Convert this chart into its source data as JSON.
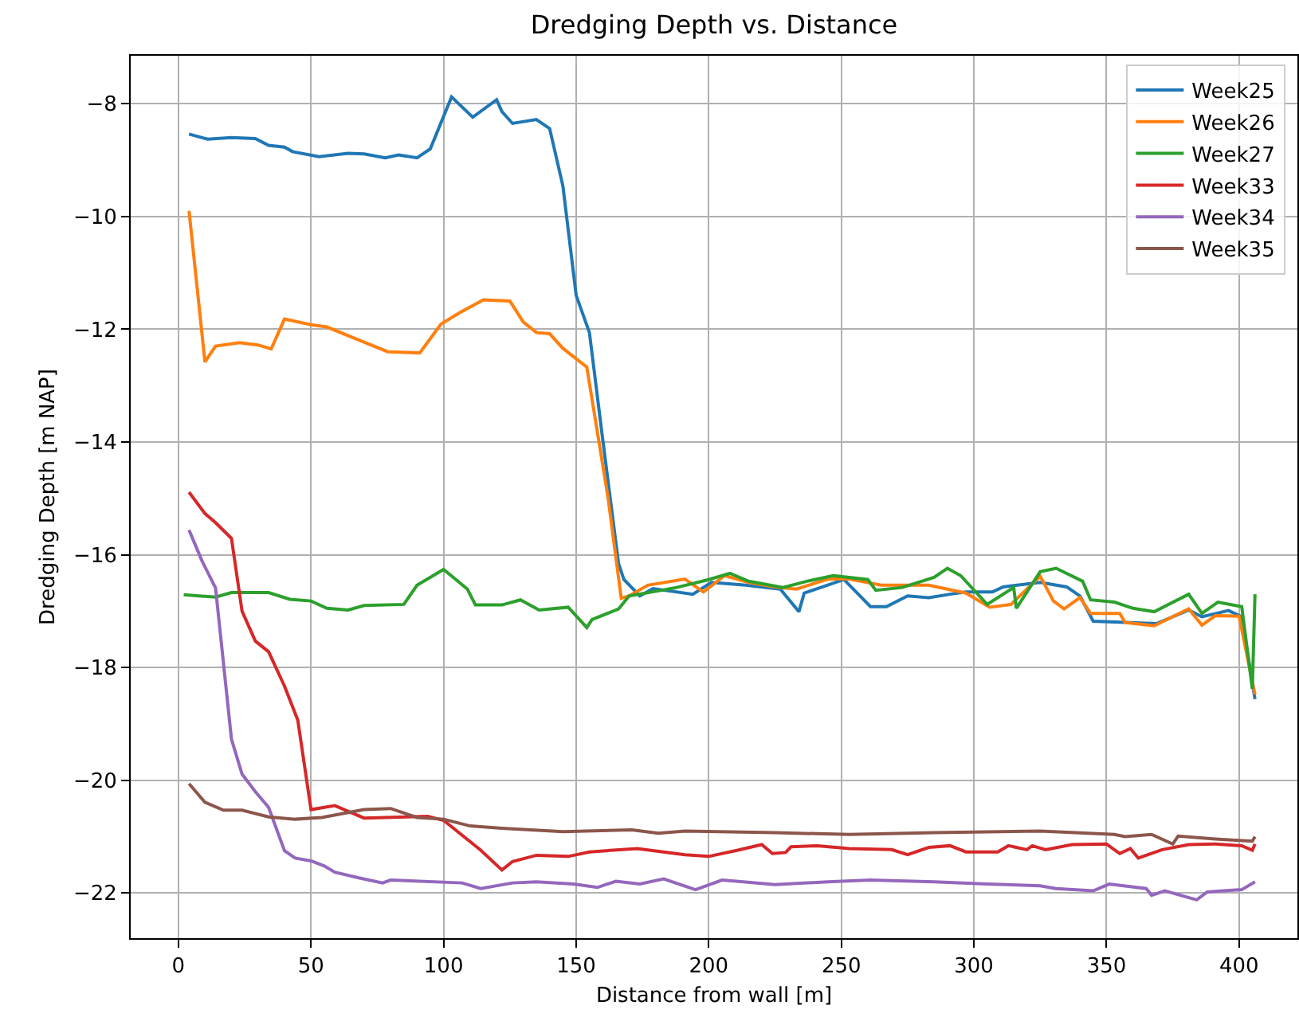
{
  "chart_data": {
    "type": "line",
    "title": "Dredging Depth vs. Distance",
    "xlabel": "Distance from wall [m]",
    "ylabel": "Dredging Depth [m NAP]",
    "xlim": [
      -18,
      422
    ],
    "ylim": [
      -22.8,
      -7.15
    ],
    "xticks": [
      0,
      50,
      100,
      150,
      200,
      250,
      300,
      350,
      400
    ],
    "yticks": [
      -22,
      -20,
      -18,
      -16,
      -14,
      -12,
      -10,
      -8
    ],
    "grid": true,
    "legend": "top right",
    "marker": "none",
    "line_style": "solid",
    "series": [
      {
        "name": "Week25",
        "color": "#1f77b4",
        "x": [
          4,
          11,
          20,
          29,
          34,
          40,
          43,
          53,
          64,
          70,
          78,
          83,
          90,
          95,
          103,
          111,
          120,
          122,
          126,
          135,
          140,
          145,
          150,
          155,
          160,
          166,
          168,
          174,
          179,
          194,
          201,
          214,
          227,
          234,
          236,
          251,
          261,
          267,
          275,
          283,
          291,
          297,
          307,
          311,
          325,
          335,
          340,
          345,
          357,
          369,
          381,
          386,
          396,
          401,
          406
        ],
        "values": [
          -8.54,
          -8.63,
          -8.6,
          -8.62,
          -8.74,
          -8.77,
          -8.85,
          -8.94,
          -8.88,
          -8.89,
          -8.96,
          -8.91,
          -8.96,
          -8.8,
          -7.88,
          -8.24,
          -7.93,
          -8.14,
          -8.35,
          -8.28,
          -8.44,
          -9.46,
          -11.4,
          -12.06,
          -13.95,
          -16.16,
          -16.44,
          -16.73,
          -16.6,
          -16.7,
          -16.49,
          -16.54,
          -16.61,
          -17.01,
          -16.68,
          -16.44,
          -16.92,
          -16.92,
          -16.73,
          -16.76,
          -16.7,
          -16.66,
          -16.66,
          -16.57,
          -16.49,
          -16.57,
          -16.73,
          -17.18,
          -17.2,
          -17.22,
          -16.98,
          -17.1,
          -16.99,
          -17.1,
          -18.56
        ]
      },
      {
        "name": "Week26",
        "color": "#ff7f0e",
        "x": [
          4,
          10,
          14,
          23,
          30,
          35,
          40,
          50,
          56,
          70,
          79,
          91,
          99,
          106,
          115,
          125,
          130,
          135,
          140,
          145,
          154,
          162,
          167,
          170,
          177,
          191,
          198,
          206,
          215,
          225,
          233,
          245,
          253,
          265,
          283,
          297,
          306,
          314,
          325,
          330,
          334,
          340,
          344,
          355,
          357,
          368,
          381,
          386,
          391,
          400,
          406
        ],
        "values": [
          -9.9,
          -12.58,
          -12.3,
          -12.24,
          -12.28,
          -12.35,
          -11.82,
          -11.92,
          -11.96,
          -12.23,
          -12.4,
          -12.42,
          -11.91,
          -11.71,
          -11.48,
          -11.5,
          -11.87,
          -12.06,
          -12.08,
          -12.34,
          -12.67,
          -14.98,
          -16.77,
          -16.73,
          -16.54,
          -16.43,
          -16.66,
          -16.37,
          -16.49,
          -16.57,
          -16.61,
          -16.43,
          -16.43,
          -16.54,
          -16.54,
          -16.68,
          -16.93,
          -16.88,
          -16.38,
          -16.82,
          -16.96,
          -16.76,
          -17.04,
          -17.04,
          -17.2,
          -17.26,
          -16.96,
          -17.25,
          -17.08,
          -17.09,
          -18.48
        ]
      },
      {
        "name": "Week27",
        "color": "#2ca02c",
        "x": [
          2,
          14,
          20,
          34,
          42,
          50,
          56,
          64,
          70,
          85,
          90,
          100,
          109,
          112,
          122,
          129,
          136,
          147,
          154,
          156,
          166,
          170,
          181,
          187,
          200,
          208,
          215,
          228,
          237,
          247,
          260,
          263,
          273,
          285,
          290,
          295,
          305,
          315,
          316,
          325,
          331,
          341,
          344,
          353,
          360,
          368,
          381,
          386,
          392,
          401,
          405,
          406
        ],
        "values": [
          -16.71,
          -16.75,
          -16.67,
          -16.67,
          -16.79,
          -16.82,
          -16.95,
          -16.98,
          -16.9,
          -16.88,
          -16.54,
          -16.26,
          -16.61,
          -16.89,
          -16.89,
          -16.8,
          -16.98,
          -16.93,
          -17.29,
          -17.15,
          -16.96,
          -16.73,
          -16.64,
          -16.59,
          -16.44,
          -16.33,
          -16.47,
          -16.58,
          -16.47,
          -16.37,
          -16.44,
          -16.63,
          -16.58,
          -16.4,
          -16.24,
          -16.37,
          -16.88,
          -16.58,
          -16.95,
          -16.3,
          -16.24,
          -16.47,
          -16.8,
          -16.84,
          -16.95,
          -17.01,
          -16.7,
          -17.04,
          -16.84,
          -16.92,
          -18.38,
          -16.7
        ]
      },
      {
        "name": "Week33",
        "color": "#d62728",
        "x": [
          4,
          10,
          14,
          20,
          24,
          29,
          34,
          40,
          45,
          50,
          59,
          70,
          94,
          100,
          114,
          122,
          126,
          135,
          147,
          155,
          173,
          191,
          200,
          211,
          220,
          224,
          229,
          231,
          241,
          253,
          269,
          275,
          283,
          291,
          297,
          309,
          313,
          320,
          322,
          327,
          337,
          350,
          355,
          359,
          362,
          371,
          381,
          391,
          401,
          405,
          406
        ],
        "values": [
          -14.89,
          -15.27,
          -15.43,
          -15.71,
          -17.0,
          -17.53,
          -17.72,
          -18.33,
          -18.93,
          -20.52,
          -20.45,
          -20.67,
          -20.64,
          -20.71,
          -21.24,
          -21.59,
          -21.44,
          -21.33,
          -21.35,
          -21.27,
          -21.21,
          -21.32,
          -21.35,
          -21.24,
          -21.14,
          -21.3,
          -21.28,
          -21.18,
          -21.16,
          -21.21,
          -21.23,
          -21.32,
          -21.19,
          -21.16,
          -21.27,
          -21.27,
          -21.16,
          -21.23,
          -21.16,
          -21.23,
          -21.14,
          -21.13,
          -21.3,
          -21.21,
          -21.38,
          -21.23,
          -21.14,
          -21.13,
          -21.16,
          -21.24,
          -21.13
        ]
      },
      {
        "name": "Week34",
        "color": "#9467bd",
        "x": [
          4,
          9,
          14,
          20,
          24,
          29,
          34,
          40,
          44,
          50,
          55,
          59,
          68,
          77,
          80,
          107,
          114,
          126,
          135,
          149,
          158,
          165,
          174,
          183,
          195,
          205,
          213,
          225,
          245,
          261,
          285,
          305,
          325,
          331,
          345,
          351,
          365,
          367,
          372,
          384,
          388,
          401,
          406
        ],
        "values": [
          -15.56,
          -16.12,
          -16.59,
          -19.27,
          -19.89,
          -20.2,
          -20.48,
          -21.25,
          -21.38,
          -21.43,
          -21.52,
          -21.63,
          -21.73,
          -21.82,
          -21.77,
          -21.82,
          -21.92,
          -21.82,
          -21.8,
          -21.84,
          -21.9,
          -21.79,
          -21.84,
          -21.75,
          -21.94,
          -21.77,
          -21.8,
          -21.85,
          -21.8,
          -21.77,
          -21.8,
          -21.84,
          -21.87,
          -21.92,
          -21.96,
          -21.84,
          -21.92,
          -22.04,
          -21.96,
          -22.12,
          -21.98,
          -21.94,
          -21.8
        ]
      },
      {
        "name": "Week35",
        "color": "#8c564b",
        "x": [
          4,
          10,
          17,
          24,
          34,
          44,
          54,
          70,
          80,
          90,
          100,
          110,
          122,
          145,
          171,
          181,
          191,
          225,
          253,
          285,
          325,
          353,
          357,
          367,
          375,
          377,
          391,
          405,
          406
        ],
        "values": [
          -20.06,
          -20.39,
          -20.53,
          -20.53,
          -20.65,
          -20.69,
          -20.66,
          -20.52,
          -20.5,
          -20.66,
          -20.69,
          -20.81,
          -20.85,
          -20.91,
          -20.88,
          -20.94,
          -20.9,
          -20.93,
          -20.96,
          -20.93,
          -20.9,
          -20.96,
          -21.0,
          -20.96,
          -21.13,
          -20.99,
          -21.04,
          -21.08,
          -21.0
        ]
      }
    ]
  }
}
